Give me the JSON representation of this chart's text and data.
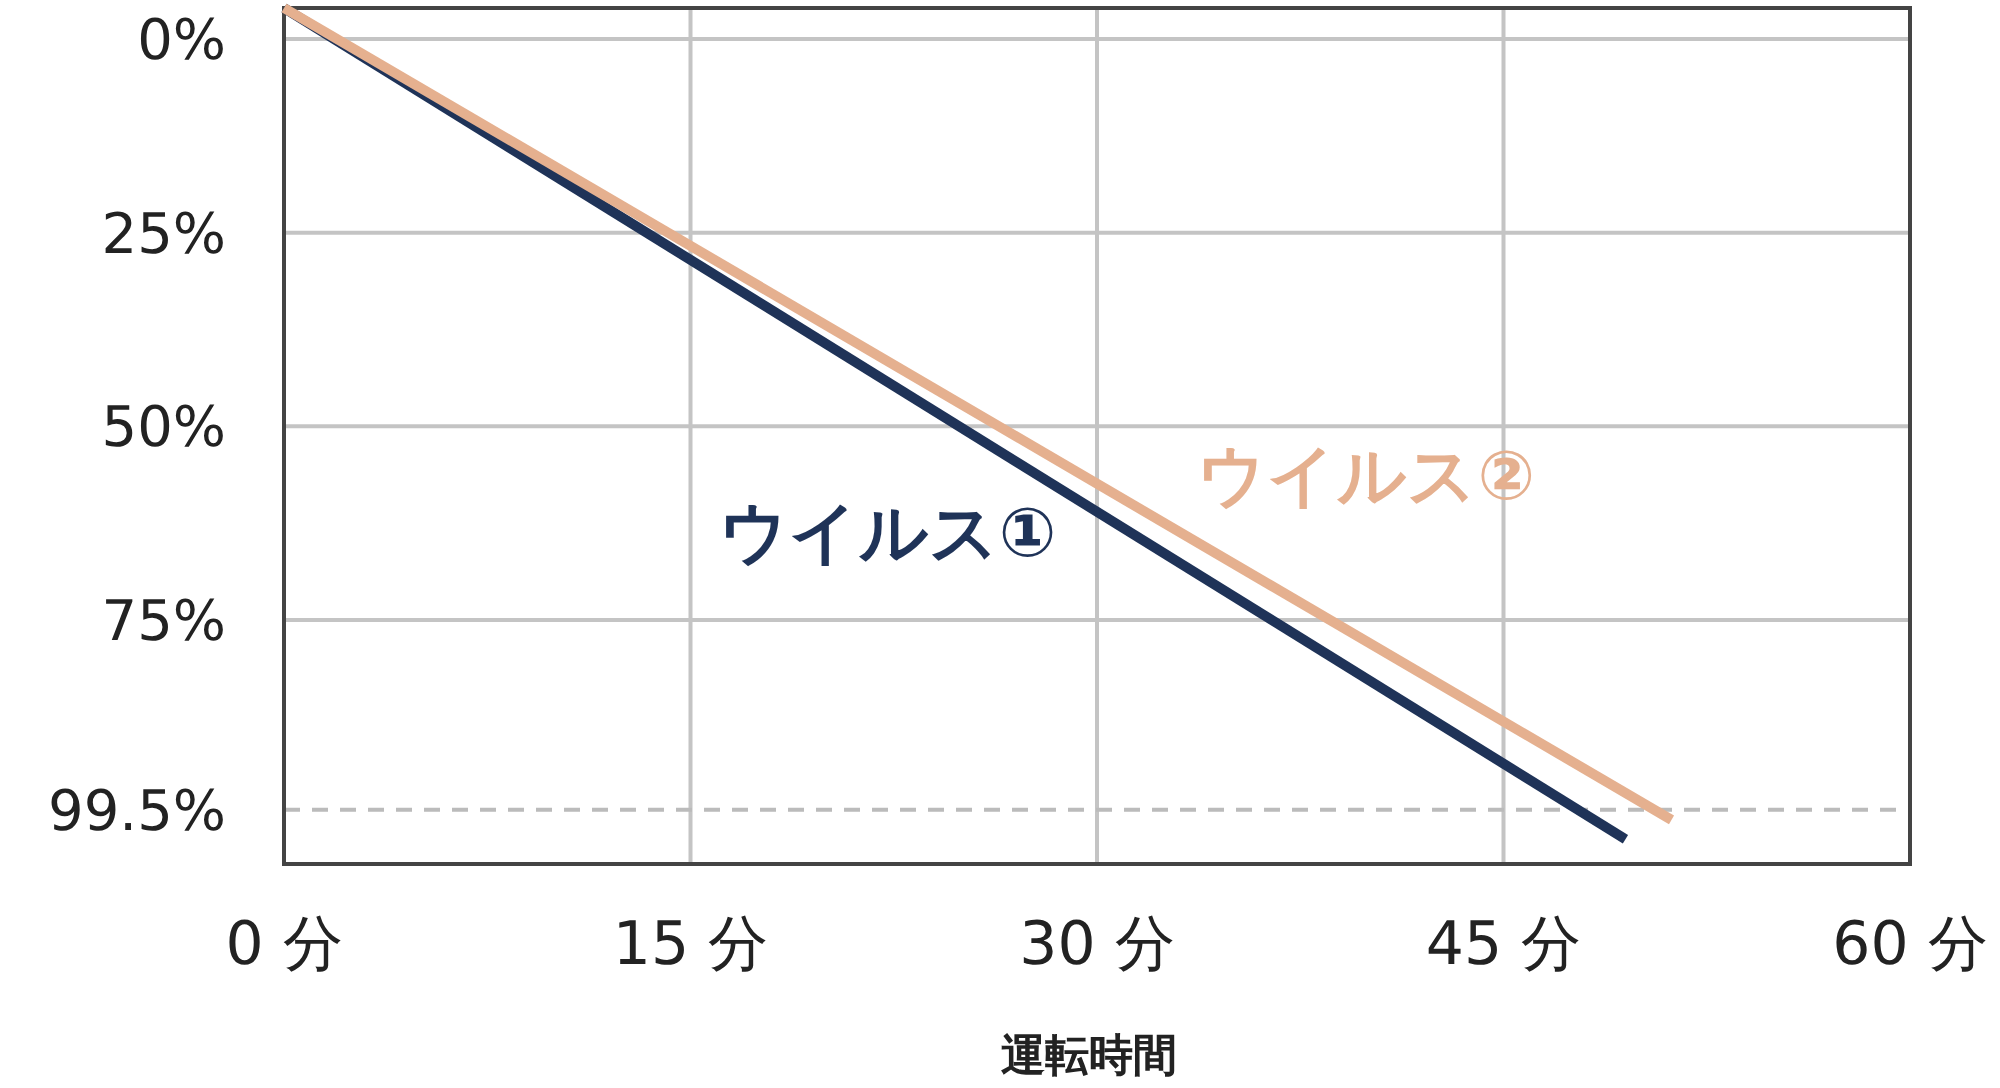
{
  "chart_data": {
    "type": "line",
    "xlabel": "運転時間",
    "x": [
      0,
      49.5
    ],
    "series": [
      {
        "name": "ウイルス①",
        "color": "#1f3358",
        "values": [
          -4,
          103.3
        ]
      },
      {
        "name": "ウイルス②",
        "color": "#e5b08f",
        "x": [
          0,
          51.2
        ],
        "values": [
          -4,
          100.8
        ]
      }
    ],
    "xlim": [
      0,
      60
    ],
    "xticks": [
      {
        "value": 0,
        "label": "0 分"
      },
      {
        "value": 15,
        "label": "15 分"
      },
      {
        "value": 30,
        "label": "30 分"
      },
      {
        "value": 45,
        "label": "45 分"
      },
      {
        "value": 60,
        "label": "60 分"
      }
    ],
    "ylim": [
      106.5,
      -4
    ],
    "yticks": [
      {
        "value": 0,
        "label": "0%"
      },
      {
        "value": 25,
        "label": "25%"
      },
      {
        "value": 50,
        "label": "50%"
      },
      {
        "value": 75,
        "label": "75%"
      },
      {
        "value": 99.5,
        "label": "99.5%"
      }
    ],
    "grid": true,
    "marker": "none",
    "line_style": "solid",
    "ref_lines": [
      {
        "axis": "y",
        "value": 99.5,
        "color": "#bbbbbb",
        "line_style": "dashed"
      }
    ]
  }
}
